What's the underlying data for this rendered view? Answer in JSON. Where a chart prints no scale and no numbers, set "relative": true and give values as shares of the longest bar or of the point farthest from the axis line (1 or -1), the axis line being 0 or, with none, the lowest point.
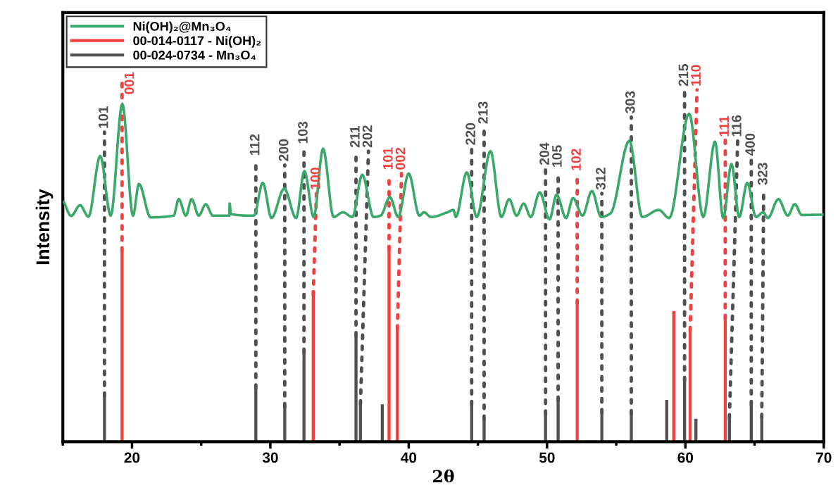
{
  "chart_data": {
    "type": "line",
    "relative": true,
    "xlabel": "2θ",
    "ylabel": "Intensity",
    "xlim": [
      15,
      70
    ],
    "xticks": [
      20,
      30,
      40,
      50,
      60,
      70
    ],
    "tick_labels": "x",
    "legend": "top left",
    "grid": false,
    "series": [
      {
        "name": "Ni(OH)₂@Mn₃O₄",
        "color": "#3aa86a",
        "x": [
          15.07,
          15.6,
          16.24,
          16.85,
          17.7,
          18.46,
          19.3,
          20.07,
          20.5,
          21.34,
          23.0,
          23.38,
          23.89,
          24.31,
          24.82,
          25.33,
          25.84,
          27.03,
          27.06,
          27.14,
          28.81,
          29.45,
          30.08,
          31.0,
          31.86,
          32.46,
          33.13,
          33.81,
          34.57,
          35.25,
          35.93,
          36.64,
          37.46,
          37.97,
          38.64,
          39.24,
          40.0,
          40.77,
          41.1,
          41.62,
          42.8,
          43.23,
          43.4,
          44.2,
          44.92,
          45.91,
          46.7,
          47.26,
          47.8,
          48.31,
          48.82,
          49.47,
          50.18,
          50.69,
          51.37,
          51.88,
          52.56,
          53.24,
          53.91,
          54.59,
          55.95,
          56.88,
          58.07,
          58.83,
          60.27,
          61.29,
          62.14,
          62.73,
          63.33,
          63.89,
          64.47,
          65.1,
          65.62,
          65.96,
          66.72,
          67.4,
          67.91,
          68.41,
          70.0
        ],
        "values": [
          0.71,
          0.668,
          0.7,
          0.666,
          0.846,
          0.669,
          1.0,
          0.669,
          0.763,
          0.664,
          0.669,
          0.718,
          0.669,
          0.718,
          0.669,
          0.703,
          0.669,
          0.669,
          0.705,
          0.674,
          0.669,
          0.766,
          0.662,
          0.749,
          0.662,
          0.801,
          0.665,
          0.867,
          0.665,
          0.679,
          0.665,
          0.79,
          0.665,
          0.669,
          0.724,
          0.665,
          0.794,
          0.669,
          0.679,
          0.665,
          0.679,
          0.686,
          0.665,
          0.797,
          0.665,
          0.86,
          0.665,
          0.718,
          0.669,
          0.705,
          0.665,
          0.738,
          0.658,
          0.731,
          0.662,
          0.721,
          0.669,
          0.742,
          0.665,
          0.676,
          0.891,
          0.665,
          0.686,
          0.662,
          0.971,
          0.665,
          0.888,
          0.662,
          0.822,
          0.665,
          0.766,
          0.665,
          0.679,
          0.662,
          0.718,
          0.669,
          0.703,
          0.671,
          0.672
        ]
      },
      {
        "name": "00-014-0117 - Ni(OH)₂",
        "type": "bar",
        "color": "#f04040",
        "x": [
          19.28,
          33.1,
          38.58,
          39.18,
          52.18,
          59.16,
          60.34,
          62.88
        ],
        "values": [
          0.564,
          0.434,
          0.568,
          0.333,
          0.409,
          0.387,
          0.328,
          0.364
        ]
      },
      {
        "name": "00-024-0734 - Mn₃O₄",
        "type": "bar",
        "color": "#505050",
        "x": [
          18.01,
          28.95,
          31.04,
          32.43,
          36.19,
          36.51,
          38.09,
          44.55,
          45.45,
          49.89,
          50.8,
          53.96,
          56.09,
          58.65,
          59.94,
          60.76,
          63.18,
          64.76,
          65.52
        ],
        "values": [
          0.134,
          0.158,
          0.103,
          0.264,
          0.313,
          0.111,
          0.111,
          0.109,
          0.066,
          0.081,
          0.122,
          0.085,
          0.082,
          0.124,
          0.18,
          0.068,
          0.07,
          0.109,
          0.071
        ]
      }
    ],
    "annotations": [
      {
        "text": "101",
        "x": 18.01,
        "y": 0.134
      },
      {
        "text": "001",
        "x": 19.28,
        "y": 0.564
      },
      {
        "text": "112",
        "x": 28.95,
        "y": 0.158
      },
      {
        "text": "200",
        "x": 31.04,
        "y": 0.103
      },
      {
        "text": "103",
        "x": 32.43,
        "y": 0.264
      },
      {
        "text": "100",
        "x": 33.1,
        "y": 0.434
      },
      {
        "text": "211",
        "x": 36.19,
        "y": 0.313
      },
      {
        "text": "202",
        "x": 36.51,
        "y": 0.111
      },
      {
        "text": "101",
        "x": 38.58,
        "y": 0.568
      },
      {
        "text": "002",
        "x": 39.18,
        "y": 0.333
      },
      {
        "text": "220",
        "x": 44.55,
        "y": 0.109
      },
      {
        "text": "213",
        "x": 45.45,
        "y": 0.066
      },
      {
        "text": "204",
        "x": 49.89,
        "y": 0.081
      },
      {
        "text": "105",
        "x": 50.8,
        "y": 0.122
      },
      {
        "text": "102",
        "x": 52.18,
        "y": 0.409
      },
      {
        "text": "312",
        "x": 53.96,
        "y": 0.085
      },
      {
        "text": "303",
        "x": 56.09,
        "y": 0.082
      },
      {
        "text": "215",
        "x": 59.94,
        "y": 0.18
      },
      {
        "text": "110",
        "x": 60.34,
        "y": 0.328
      },
      {
        "text": "111",
        "x": 62.88,
        "y": 0.364
      },
      {
        "text": "116",
        "x": 63.18,
        "y": 0.07
      },
      {
        "text": "400",
        "x": 64.76,
        "y": 0.109
      },
      {
        "text": "323",
        "x": 65.52,
        "y": 0.071
      }
    ]
  }
}
